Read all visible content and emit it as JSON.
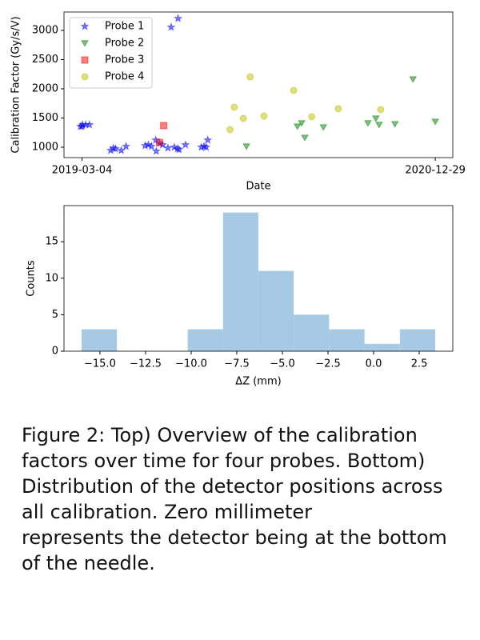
{
  "chart_data": [
    {
      "type": "scatter",
      "x_label": "Date",
      "y_label": "Calibration Factor (Gy/s/V)",
      "xlim": [
        "2019-01-29",
        "2021-01-31"
      ],
      "xticks": [
        "2019-03-04",
        "2020-12-29"
      ],
      "ylim": [
        822,
        3315
      ],
      "yticks": [
        1000,
        1500,
        2000,
        2500,
        3000
      ],
      "legend": "upper left",
      "alpha": 0.5,
      "series": [
        {
          "name": "Probe 1",
          "color": "#0000ff",
          "marker": "star",
          "x": [
            "2019-03-01",
            "2019-03-04",
            "2019-03-05",
            "2019-03-11",
            "2019-03-18",
            "2019-04-27",
            "2019-05-02",
            "2019-05-06",
            "2019-05-17",
            "2019-05-26",
            "2019-07-01",
            "2019-07-07",
            "2019-07-13",
            "2019-07-21",
            "2019-07-22",
            "2019-07-28",
            "2019-08-03",
            "2019-08-13",
            "2019-08-19",
            "2019-08-25",
            "2019-08-31",
            "2019-09-01",
            "2019-09-03",
            "2019-09-15",
            "2019-10-15",
            "2019-10-20",
            "2019-10-24",
            "2019-10-27"
          ],
          "values": [
            1356,
            1356,
            1384,
            1384,
            1384,
            945,
            986,
            973,
            945,
            1014,
            1027,
            1041,
            1014,
            1123,
            932,
            1068,
            1041,
            986,
            3055,
            1000,
            973,
            3205,
            959,
            1041,
            1000,
            1014,
            1000,
            1123
          ]
        },
        {
          "name": "Probe 2",
          "color": "#008000",
          "marker": "triangle-down",
          "x": [
            "2020-01-08",
            "2020-04-13",
            "2020-04-21",
            "2020-04-27",
            "2020-06-01",
            "2020-08-24",
            "2020-09-08",
            "2020-09-14",
            "2020-10-14",
            "2020-11-17",
            "2020-12-29"
          ],
          "values": [
            1014,
            1356,
            1411,
            1164,
            1342,
            1411,
            1493,
            1384,
            1397,
            2164,
            1438
          ]
        },
        {
          "name": "Probe 3",
          "color": "#ff0000",
          "marker": "square",
          "x": [
            "2019-07-28",
            "2019-08-05"
          ],
          "values": [
            1082,
            1370
          ]
        },
        {
          "name": "Probe 4",
          "color": "#bfbf00",
          "marker": "circle",
          "x": [
            "2019-12-08",
            "2019-12-16",
            "2020-01-02",
            "2020-01-15",
            "2020-02-10",
            "2020-04-06",
            "2020-05-10",
            "2020-06-29",
            "2020-09-17"
          ],
          "values": [
            1301,
            1685,
            1493,
            2205,
            1534,
            1973,
            1521,
            1658,
            1644
          ]
        }
      ]
    },
    {
      "type": "histogram",
      "x_label": "ΔZ (mm)",
      "y_label": "Counts",
      "bins": [
        -16.01,
        -14.07,
        -12.13,
        -10.19,
        -8.25,
        -6.32,
        -4.38,
        -2.44,
        -0.5,
        1.44,
        3.38
      ],
      "values": [
        3,
        0,
        0,
        3,
        19,
        11,
        5,
        3,
        1,
        3
      ],
      "color": "#a6cae3",
      "xlim": [
        -16.97,
        4.34
      ],
      "xticks": [
        {
          "value": -15,
          "label": "−15.0"
        },
        {
          "value": -12.5,
          "label": "−12.5"
        },
        {
          "value": -10,
          "label": "−10.0"
        },
        {
          "value": -7.5,
          "label": "−7.5"
        },
        {
          "value": -5,
          "label": "−5.0"
        },
        {
          "value": -2.5,
          "label": "−2.5"
        },
        {
          "value": 0,
          "label": "0.0"
        },
        2.5
      ],
      "ylim": [
        0,
        19.95
      ],
      "yticks": [
        0,
        5,
        10,
        15
      ]
    }
  ],
  "caption": "Figure 2: Top) Overview of the calibration factors over time for four probes. Bottom) Distribution of the detector positions across all calibration. Zero millimeter\nrepresents the detector being at the bottom of the needle."
}
